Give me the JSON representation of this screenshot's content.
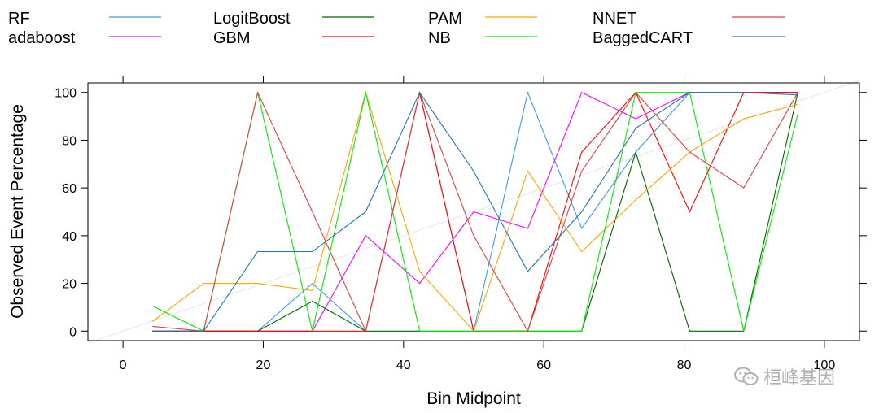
{
  "chart_data": {
    "type": "line",
    "title": "",
    "xlabel": "Bin Midpoint",
    "ylabel": "Observed Event Percentage",
    "xlim": [
      -5,
      105
    ],
    "ylim": [
      -4,
      104
    ],
    "xticks": [
      0,
      20,
      40,
      60,
      80,
      100
    ],
    "yticks": [
      0,
      20,
      40,
      60,
      80,
      100
    ],
    "x_tick_labels": [
      "0",
      "20",
      "40",
      "60",
      "80",
      "100"
    ],
    "y_tick_labels": [
      "0",
      "20",
      "40",
      "60",
      "80",
      "100"
    ],
    "grid": false,
    "reference_line": {
      "from": [
        -5,
        -5
      ],
      "to": [
        105,
        105
      ],
      "color": "#e6e6e6"
    },
    "legend_position": "top",
    "x": [
      4.2,
      11.5,
      19.2,
      27,
      34.6,
      42.3,
      50,
      57.7,
      65.4,
      73.1,
      80.8,
      88.5,
      96.2
    ],
    "series": [
      {
        "name": "RF",
        "color": "#3c9be6",
        "values": [
          0,
          0,
          0,
          20,
          0,
          100,
          0,
          100,
          43,
          75,
          100,
          100,
          100
        ]
      },
      {
        "name": "adaboost",
        "color": "#ff00ff",
        "values": [
          0,
          0,
          0,
          0,
          40,
          20,
          50,
          43,
          100,
          89,
          100,
          100,
          100
        ]
      },
      {
        "name": "LogitBoost",
        "color": "#006400",
        "values": [
          0,
          0,
          0,
          12.5,
          0,
          0,
          0,
          0,
          0,
          75,
          0,
          0,
          100
        ]
      },
      {
        "name": "GBM",
        "color": "#ff0000",
        "values": [
          0,
          0,
          0,
          0,
          0,
          100,
          0,
          0,
          75,
          100,
          50,
          100,
          100
        ]
      },
      {
        "name": "PAM",
        "color": "#ffa500",
        "values": [
          4,
          20,
          20,
          17,
          100,
          25,
          0,
          67,
          33.3,
          55,
          75,
          89,
          95
        ]
      },
      {
        "name": "NB",
        "color": "#00ee00",
        "values": [
          10.5,
          0,
          100,
          0,
          100,
          0,
          0,
          0,
          0,
          100,
          100,
          0,
          91
        ]
      },
      {
        "name": "NNET",
        "color": "#e04040",
        "values": [
          2,
          0,
          100,
          50,
          0,
          100,
          40,
          0,
          67,
          100,
          75,
          60,
          100
        ]
      },
      {
        "name": "BaggedCART",
        "color": "#1f77b4",
        "values": [
          0,
          0,
          33.3,
          33.3,
          50,
          100,
          67,
          25,
          50,
          85,
          100,
          100,
          99
        ]
      }
    ]
  },
  "watermark": {
    "text": "桓峰基因",
    "icon": "wechat-icon"
  }
}
